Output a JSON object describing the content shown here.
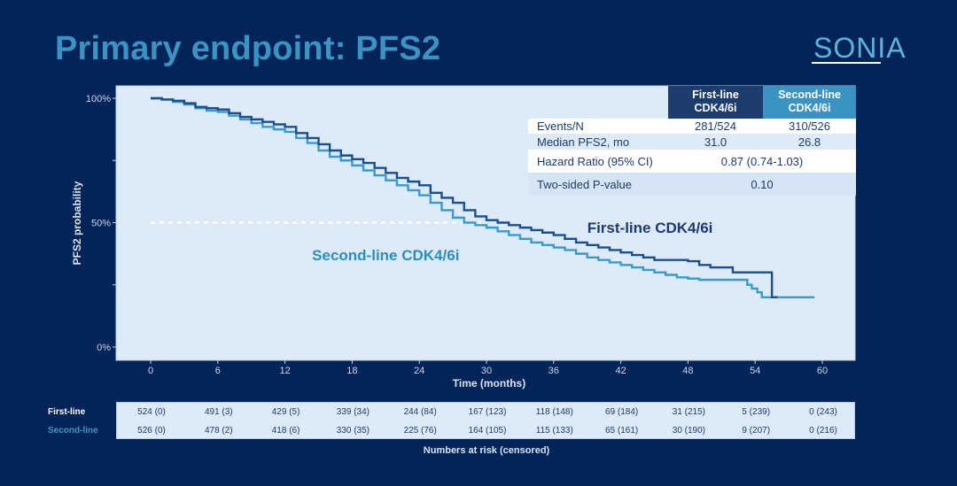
{
  "title": "Primary endpoint: PFS2",
  "logo": {
    "text": "SONIA"
  },
  "colors": {
    "background": "#022458",
    "title": "#3a93c3",
    "plot_bg": "#ddeaf7",
    "first_line": "#1a4f8f",
    "second_line": "#3b9bc8",
    "first_line_label": "#1d3b6e",
    "second_line_label": "#2a8fc0"
  },
  "stats_table": {
    "headers": [
      "First-line CDK4/6i",
      "Second-line CDK4/6i"
    ],
    "header_lines": [
      [
        "First-line",
        "CDK4/6i"
      ],
      [
        "Second-line",
        "CDK4/6i"
      ]
    ],
    "rows": [
      {
        "label": "Events/N",
        "first": "281/524",
        "second": "310/526"
      },
      {
        "label": "Median PFS2, mo",
        "first": "31.0",
        "second": "26.8"
      },
      {
        "label": "Hazard Ratio (95% CI)",
        "combined": "0.87 (0.74-1.03)"
      },
      {
        "label": "Two-sided P-value",
        "combined": "0.10"
      }
    ]
  },
  "chart_data": {
    "type": "line",
    "title": "",
    "xlabel": "Time (months)",
    "ylabel": "PFS2 probability",
    "xlim": [
      0,
      60
    ],
    "ylim": [
      0,
      100
    ],
    "x_ticks": [
      0,
      6,
      12,
      18,
      24,
      30,
      36,
      42,
      48,
      54,
      60
    ],
    "y_ticks": [
      0,
      25,
      50,
      75,
      100
    ],
    "y_tick_labels": [
      "0%",
      "",
      "50%",
      "",
      "100%"
    ],
    "grid": false,
    "step": true,
    "median_reference_line": {
      "y": 50,
      "style": "dashed",
      "color": "#ffffff"
    },
    "series": [
      {
        "name": "First-line CDK4/6i",
        "points": [
          [
            0,
            100
          ],
          [
            1,
            99.5
          ],
          [
            2,
            99
          ],
          [
            3,
            98
          ],
          [
            4,
            96.5
          ],
          [
            5,
            96
          ],
          [
            6,
            95.5
          ],
          [
            7,
            94
          ],
          [
            8,
            92.5
          ],
          [
            9,
            91.5
          ],
          [
            10,
            90.5
          ],
          [
            11,
            89.5
          ],
          [
            12,
            88.5
          ],
          [
            13,
            86
          ],
          [
            14,
            84
          ],
          [
            15,
            81.5
          ],
          [
            16,
            79
          ],
          [
            17,
            77
          ],
          [
            18,
            75.5
          ],
          [
            19,
            74
          ],
          [
            20,
            72
          ],
          [
            21,
            70
          ],
          [
            22,
            68
          ],
          [
            23,
            66.5
          ],
          [
            24,
            65
          ],
          [
            25,
            62
          ],
          [
            26,
            60
          ],
          [
            27,
            58
          ],
          [
            28,
            55
          ],
          [
            29,
            52.5
          ],
          [
            30,
            51
          ],
          [
            31,
            50
          ],
          [
            32,
            49
          ],
          [
            33,
            48
          ],
          [
            34,
            47
          ],
          [
            35,
            46
          ],
          [
            36,
            45
          ],
          [
            37,
            43.5
          ],
          [
            38,
            42
          ],
          [
            39,
            41
          ],
          [
            40,
            40
          ],
          [
            41,
            39
          ],
          [
            42,
            38
          ],
          [
            43,
            37
          ],
          [
            44,
            36
          ],
          [
            45,
            35
          ],
          [
            46,
            35
          ],
          [
            47,
            35
          ],
          [
            48,
            34.5
          ],
          [
            49,
            33
          ],
          [
            50,
            32
          ],
          [
            51,
            32
          ],
          [
            52,
            30
          ],
          [
            53,
            30
          ],
          [
            54,
            30
          ],
          [
            55.5,
            30
          ],
          [
            55.5,
            20
          ],
          [
            56,
            20
          ]
        ]
      },
      {
        "name": "Second-line CDK4/6i",
        "points": [
          [
            0,
            100
          ],
          [
            1,
            99.5
          ],
          [
            2,
            98.5
          ],
          [
            3,
            97.5
          ],
          [
            4,
            96
          ],
          [
            5,
            95
          ],
          [
            6,
            94.5
          ],
          [
            7,
            93
          ],
          [
            8,
            91.5
          ],
          [
            9,
            90
          ],
          [
            10,
            88.5
          ],
          [
            11,
            87.5
          ],
          [
            12,
            86.5
          ],
          [
            13,
            84
          ],
          [
            14,
            82
          ],
          [
            15,
            79
          ],
          [
            16,
            76.5
          ],
          [
            17,
            75
          ],
          [
            18,
            73
          ],
          [
            19,
            71
          ],
          [
            20,
            69
          ],
          [
            21,
            67
          ],
          [
            22,
            65
          ],
          [
            23,
            63
          ],
          [
            24,
            61
          ],
          [
            25,
            58
          ],
          [
            26,
            55
          ],
          [
            27,
            52
          ],
          [
            28,
            50
          ],
          [
            29,
            49
          ],
          [
            30,
            48
          ],
          [
            31,
            46.5
          ],
          [
            32,
            45
          ],
          [
            33,
            43.5
          ],
          [
            34,
            42
          ],
          [
            35,
            41
          ],
          [
            36,
            40
          ],
          [
            37,
            39
          ],
          [
            38,
            37.5
          ],
          [
            39,
            36
          ],
          [
            40,
            35
          ],
          [
            41,
            34
          ],
          [
            42,
            33
          ],
          [
            43,
            32
          ],
          [
            44,
            31
          ],
          [
            45,
            30
          ],
          [
            46,
            29
          ],
          [
            47,
            28
          ],
          [
            48,
            27.5
          ],
          [
            49,
            27
          ],
          [
            50,
            27
          ],
          [
            51,
            27
          ],
          [
            52,
            27
          ],
          [
            53,
            27
          ],
          [
            53.3,
            25
          ],
          [
            53.7,
            23.5
          ],
          [
            54.2,
            22
          ],
          [
            54.6,
            20
          ],
          [
            59.3,
            20
          ]
        ]
      }
    ],
    "annotations": [
      {
        "text": "First-line CDK4/6i",
        "series": "First-line CDK4/6i",
        "x": 39,
        "y": 48
      },
      {
        "text": "Second-line CDK4/6i",
        "series": "Second-line CDK4/6i",
        "x": 21,
        "y": 37
      }
    ],
    "risk_table": {
      "caption": "Numbers at risk (censored)",
      "times": [
        0,
        6,
        12,
        18,
        24,
        30,
        36,
        42,
        48,
        54,
        60
      ],
      "rows": [
        {
          "label": "First-line",
          "values": [
            "524 (0)",
            "491 (3)",
            "429 (5)",
            "339 (34)",
            "244 (84)",
            "167 (123)",
            "118 (148)",
            "69 (184)",
            "31 (215)",
            "5 (239)",
            "0 (243)"
          ]
        },
        {
          "label": "Second-line",
          "values": [
            "526 (0)",
            "478 (2)",
            "418 (6)",
            "330 (35)",
            "225 (76)",
            "164 (105)",
            "115 (133)",
            "65 (161)",
            "30 (190)",
            "9 (207)",
            "0 (216)"
          ]
        }
      ]
    }
  }
}
